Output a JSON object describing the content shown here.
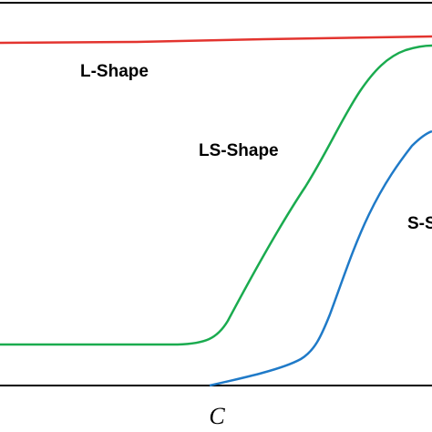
{
  "labels": {
    "l_shape": "L-Shape",
    "ls_shape": "LS-Shape",
    "s_shape": "S-S"
  },
  "axis": {
    "x_label": "C"
  }
}
